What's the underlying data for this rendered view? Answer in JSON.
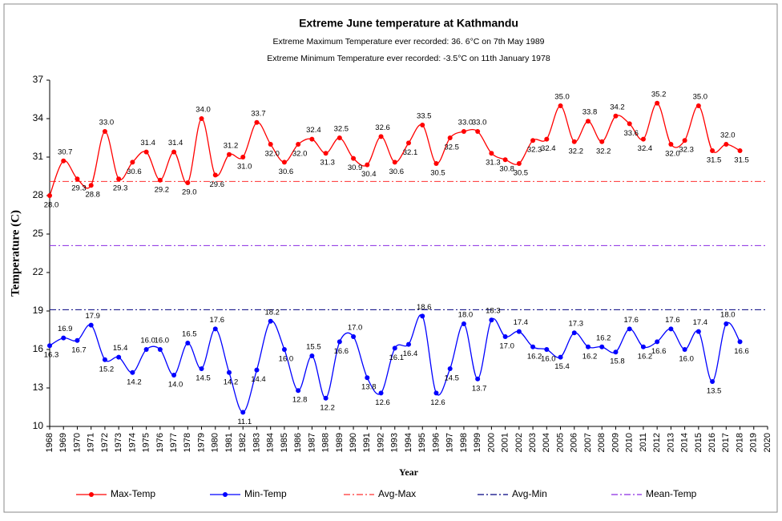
{
  "chart_data": {
    "type": "line",
    "title": "Extreme June temperature at Kathmandu",
    "subtitles": [
      "Extreme Maximum Temperature ever recorded: 36. 6°C on 7th May 1989",
      "Extreme Minimum Temperature ever recorded: -3.5°C on 11th January 1978"
    ],
    "x_label": "Year",
    "y_label": "Temperature  (C)",
    "x": [
      1968,
      1969,
      1970,
      1971,
      1972,
      1973,
      1974,
      1975,
      1976,
      1977,
      1978,
      1979,
      1980,
      1981,
      1982,
      1983,
      1984,
      1985,
      1986,
      1987,
      1988,
      1989,
      1990,
      1991,
      1992,
      1993,
      1994,
      1995,
      1996,
      1997,
      1998,
      1999,
      2000,
      2001,
      2002,
      2003,
      2004,
      2005,
      2006,
      2007,
      2008,
      2009,
      2010,
      2011,
      2012,
      2013,
      2014,
      2015,
      2016,
      2017,
      2018
    ],
    "series": [
      {
        "name": "Max-Temp",
        "color": "#ff0000",
        "values": [
          28.0,
          30.7,
          29.3,
          28.8,
          33.0,
          29.3,
          30.6,
          31.4,
          29.2,
          31.4,
          29.0,
          34.0,
          29.6,
          31.2,
          31.0,
          33.7,
          32.0,
          30.6,
          32.0,
          32.4,
          31.3,
          32.5,
          30.9,
          30.4,
          32.6,
          30.6,
          32.1,
          33.5,
          30.5,
          32.5,
          33.0,
          33.0,
          31.3,
          30.8,
          30.5,
          32.3,
          32.4,
          35.0,
          32.2,
          33.8,
          32.2,
          34.2,
          33.6,
          32.4,
          35.2,
          32.0,
          32.3,
          35.0,
          31.5,
          32.0,
          31.5
        ],
        "value_labels": [
          "28.0",
          "30.7",
          "29.3",
          "28.8",
          "33.0",
          "29.3",
          "30.6",
          "31.4",
          "29.2",
          "31.4",
          "29.0",
          "34.0",
          "29.6",
          "31.2",
          "31.0",
          "33.7",
          "32.0",
          "30.6",
          "32.0",
          "32.4",
          "31.3",
          "32.5",
          "30.9",
          "30.4",
          "32.6",
          "30.6",
          "32.1",
          "33.5",
          "30.5",
          "32.5",
          "33.0",
          "33.0",
          "31.3",
          "30.8",
          "30.5",
          "32.3",
          "32.4",
          "35.0",
          "32.2",
          "33.8",
          "32.2",
          "34.2",
          "33.6",
          "32.4",
          "35.2",
          "32.0",
          "32.3",
          "35.0",
          "31.5",
          "32.0",
          "31.5"
        ]
      },
      {
        "name": "Min-Temp",
        "color": "#0000ff",
        "values": [
          16.3,
          16.9,
          16.7,
          17.9,
          15.2,
          15.4,
          14.2,
          16.0,
          16.0,
          14.0,
          16.5,
          14.5,
          17.6,
          14.2,
          11.1,
          14.4,
          18.2,
          16.0,
          12.8,
          15.5,
          12.2,
          16.6,
          17.0,
          13.8,
          12.6,
          16.1,
          16.4,
          18.6,
          12.6,
          14.5,
          18.0,
          13.7,
          18.3,
          17.0,
          17.4,
          16.2,
          16.0,
          15.4,
          17.3,
          16.2,
          16.2,
          15.8,
          17.6,
          16.2,
          16.6,
          17.6,
          16.0,
          17.4,
          13.5,
          18.0,
          16.6
        ],
        "value_labels": [
          "16.3",
          "16.9",
          "16.7",
          "17.9",
          "15.2",
          "15.4",
          "14.2",
          "16.0",
          "16.0",
          "14.0",
          "16.5",
          "14.5",
          "17.6",
          "14.2",
          "11.1",
          "14.4",
          "18.2",
          "16.0",
          "12.8",
          "15.5",
          "12.2",
          "16.6",
          "17.0",
          "13.8",
          "12.6",
          "16.1",
          "16.4",
          "18.6",
          "12.6",
          "14.5",
          "18.0",
          "13.7",
          "18.3",
          "17.0",
          "17.4",
          "16.2",
          "16.0",
          "15.4",
          "17.3",
          "16.2",
          "16.2",
          "15.8",
          "17.6",
          "16.2",
          "16.6",
          "17.6",
          "16.0",
          "17.4",
          "13.5",
          "18.0",
          "16.6"
        ]
      }
    ],
    "reference_lines": [
      {
        "name": "Avg-Max",
        "value": 29.1,
        "color": "#ff3030",
        "dash": "8 3 2 3"
      },
      {
        "name": "Avg-Min",
        "value": 19.1,
        "color": "#000080",
        "dash": "8 3 2 3"
      },
      {
        "name": "Mean-Temp",
        "value": 24.1,
        "color": "#8a2be2",
        "dash": "8 3 2 3"
      }
    ],
    "xlim": [
      1968,
      2020
    ],
    "xticks": [
      1968,
      1969,
      1970,
      1971,
      1972,
      1973,
      1974,
      1975,
      1976,
      1977,
      1978,
      1979,
      1980,
      1981,
      1982,
      1983,
      1984,
      1985,
      1986,
      1987,
      1988,
      1989,
      1990,
      1991,
      1992,
      1993,
      1994,
      1995,
      1996,
      1997,
      1998,
      1999,
      2000,
      2001,
      2002,
      2003,
      2004,
      2005,
      2006,
      2007,
      2008,
      2009,
      2010,
      2011,
      2012,
      2013,
      2014,
      2015,
      2016,
      2017,
      2018,
      2019,
      2020
    ],
    "ylim": [
      10,
      37
    ],
    "yticks": [
      10,
      13,
      16,
      19,
      22,
      25,
      28,
      31,
      34,
      37
    ],
    "legend": "bottom"
  }
}
